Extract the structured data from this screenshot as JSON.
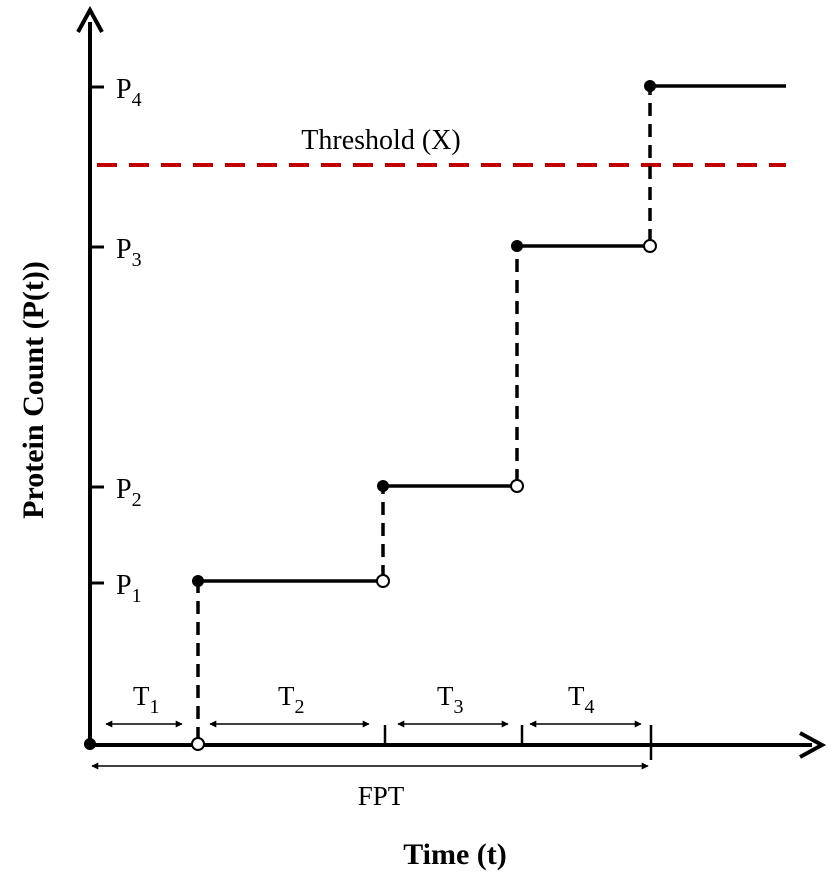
{
  "diagram": {
    "y_axis_title": "Protein Count (P(t))",
    "x_axis_title": "Time (t)",
    "threshold": {
      "label": "Threshold (X)",
      "color": "#c00000"
    },
    "levels": [
      {
        "base": "P",
        "sub": "1"
      },
      {
        "base": "P",
        "sub": "2"
      },
      {
        "base": "P",
        "sub": "3"
      },
      {
        "base": "P",
        "sub": "4"
      }
    ],
    "intervals": [
      {
        "base": "T",
        "sub": "1"
      },
      {
        "base": "T",
        "sub": "2"
      },
      {
        "base": "T",
        "sub": "3"
      },
      {
        "base": "T",
        "sub": "4"
      }
    ],
    "total_interval_label": "FPT",
    "line_color": "#000000"
  }
}
